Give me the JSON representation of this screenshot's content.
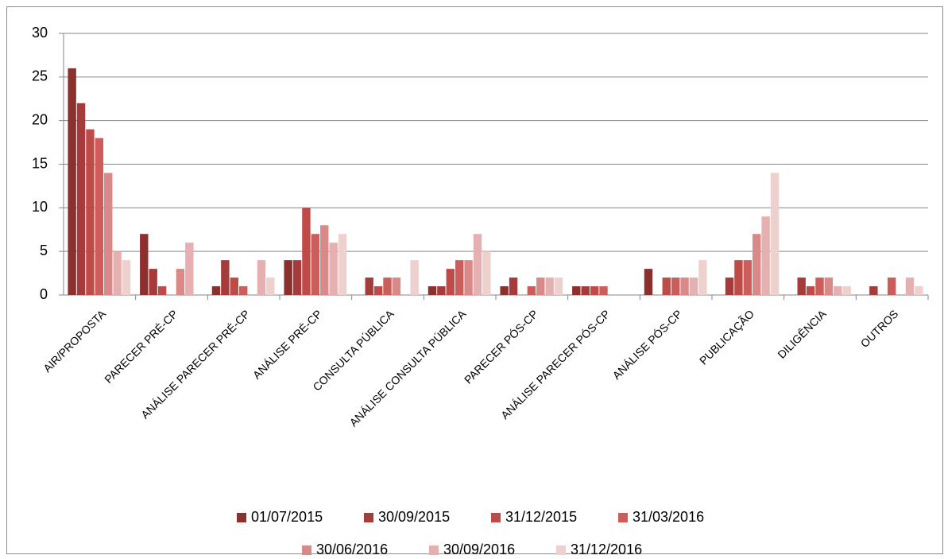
{
  "chart_data": {
    "type": "bar",
    "categories": [
      "AIR/PROPOSTA",
      "PARECER PRÉ-CP",
      "ANÁLISE PARECER PRÉ-CP",
      "ANÁLISE PRÉ-CP",
      "CONSULTA PÚBLICA",
      "ANÁLISE CONSULTA PÚBLICA",
      "PARECER PÓS-CP",
      "ANÁLISE PARECER PÓS-CP",
      "ANÁLISE PÓS-CP",
      "PUBLICAÇÃO",
      "DILIGÊNCIA",
      "OUTROS"
    ],
    "series": [
      {
        "name": "01/07/2015",
        "color": "#8b2f2f",
        "values": [
          26,
          7,
          1,
          4,
          0,
          1,
          1,
          1,
          3,
          0,
          0,
          0
        ]
      },
      {
        "name": "30/09/2015",
        "color": "#a53b3a",
        "values": [
          22,
          3,
          4,
          4,
          2,
          1,
          2,
          1,
          0,
          2,
          2,
          1
        ]
      },
      {
        "name": "31/12/2015",
        "color": "#bf4b48",
        "values": [
          19,
          1,
          2,
          10,
          1,
          3,
          0,
          1,
          2,
          4,
          1,
          0
        ]
      },
      {
        "name": "31/03/2016",
        "color": "#cd5d5a",
        "values": [
          18,
          0,
          1,
          7,
          2,
          4,
          1,
          1,
          2,
          4,
          2,
          2
        ]
      },
      {
        "name": "30/06/2016",
        "color": "#d98a88",
        "values": [
          14,
          3,
          0,
          8,
          2,
          4,
          2,
          0,
          2,
          7,
          2,
          0
        ]
      },
      {
        "name": "30/09/2016",
        "color": "#e5b0af",
        "values": [
          5,
          6,
          4,
          6,
          0,
          7,
          2,
          0,
          2,
          9,
          1,
          2
        ]
      },
      {
        "name": "31/12/2016",
        "color": "#eed0cf",
        "values": [
          4,
          0,
          2,
          7,
          4,
          5,
          2,
          0,
          4,
          14,
          1,
          1
        ]
      }
    ],
    "ylim": [
      0,
      30
    ],
    "yticks": [
      0,
      5,
      10,
      15,
      20,
      25,
      30
    ],
    "grid": true,
    "legend": "bottom"
  }
}
